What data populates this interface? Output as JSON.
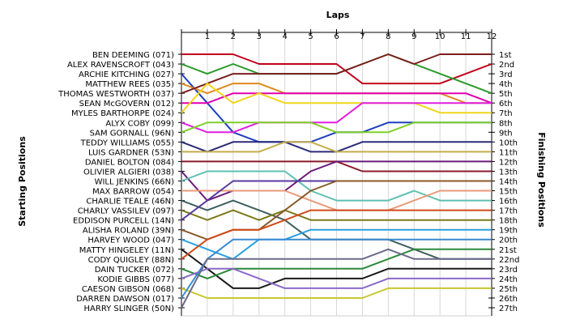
{
  "chart_data": {
    "type": "line",
    "title": "Laps",
    "ylabel_left": "Starting Positions",
    "ylabel_right": "Finishing Positions",
    "laps": [
      "1",
      "2",
      "3",
      "4",
      "5",
      "6",
      "7",
      "8",
      "9",
      "10",
      "11",
      "12"
    ],
    "finish_labels": [
      "1st",
      "2nd",
      "3rd",
      "4th",
      "5th",
      "6th",
      "7th",
      "8th",
      "9th",
      "10th",
      "11th",
      "12th",
      "13th",
      "14th",
      "15th",
      "16th",
      "17th",
      "18th",
      "19th",
      "20th",
      "21st",
      "22nd",
      "23rd",
      "24th",
      "25th",
      "26th",
      "27th"
    ],
    "series": [
      {
        "name": "BEN DEEMING (071)",
        "color": "#c0001a",
        "positions": [
          1,
          1,
          1,
          2,
          2,
          2,
          2,
          4,
          4,
          4,
          4,
          3,
          2
        ]
      },
      {
        "name": "ALEX RAVENSCROFT (043)",
        "color": "#2a9a2a",
        "positions": [
          2,
          3,
          2,
          3,
          3,
          3,
          3,
          2,
          1,
          2,
          3,
          4,
          5
        ]
      },
      {
        "name": "ARCHIE KITCHING (027)",
        "color": "#1f3fbf",
        "positions": [
          3,
          6,
          9,
          10,
          10,
          10,
          9,
          9,
          8,
          8,
          8,
          8,
          8
        ]
      },
      {
        "name": "MATTHEW REES (035)",
        "color": "#e08a1e",
        "positions": [
          4,
          5,
          4,
          4,
          5,
          5,
          5,
          5,
          5,
          5,
          5,
          6,
          6
        ]
      },
      {
        "name": "THOMAS WESTWORTH (037)",
        "color": "#7b1e1e",
        "positions": [
          5,
          4,
          3,
          3,
          3,
          3,
          3,
          2,
          1,
          2,
          1,
          1,
          1
        ]
      },
      {
        "name": "SEAN McGOVERN (012)",
        "color": "#e000b0",
        "positions": [
          6,
          6,
          5,
          5,
          5,
          5,
          5,
          5,
          5,
          5,
          5,
          5,
          6
        ]
      },
      {
        "name": "MYLES BARTHORPE (024)",
        "color": "#f1d51b",
        "positions": [
          7,
          4,
          6,
          5,
          6,
          6,
          6,
          6,
          6,
          6,
          7,
          7,
          7
        ]
      },
      {
        "name": "ALYX COBY (099)",
        "color": "#e01fe0",
        "positions": [
          8,
          9,
          9,
          8,
          8,
          8,
          8,
          6,
          6,
          6,
          6,
          6,
          6
        ]
      },
      {
        "name": "SAM GORNALL (96N)",
        "color": "#7fd02a",
        "positions": [
          9,
          8,
          8,
          8,
          8,
          8,
          9,
          9,
          9,
          8,
          8,
          8,
          8
        ]
      },
      {
        "name": "TEDDY WILLIAMS (055)",
        "color": "#2b2b7a",
        "positions": [
          10,
          11,
          10,
          10,
          10,
          11,
          11,
          10,
          10,
          10,
          10,
          10,
          10
        ]
      },
      {
        "name": "LUIS GARDNER (53N)",
        "color": "#c4ae4a",
        "positions": [
          11,
          11,
          11,
          11,
          10,
          10,
          11,
          11,
          11,
          11,
          11,
          11,
          11
        ]
      },
      {
        "name": "DANIEL BOLTON (084)",
        "color": "#8a1a2a",
        "positions": [
          12,
          12,
          12,
          12,
          12,
          12,
          12,
          13,
          13,
          13,
          13,
          13,
          13
        ]
      },
      {
        "name": "OLIVIER ALGIERI (038)",
        "color": "#6a1a7a",
        "positions": [
          13,
          16,
          15,
          15,
          15,
          13,
          12,
          12,
          12,
          12,
          12,
          12,
          12
        ]
      },
      {
        "name": "WILL JENKINS (66N)",
        "color": "#5fc0b0",
        "positions": [
          14,
          13,
          13,
          13,
          13,
          15,
          16,
          16,
          16,
          15,
          16,
          16,
          16
        ]
      },
      {
        "name": "MAX BARROW (054)",
        "color": "#e89a7a",
        "positions": [
          15,
          15,
          15,
          15,
          15,
          16,
          17,
          17,
          17,
          16,
          15,
          15,
          15
        ]
      },
      {
        "name": "CHARLIE TEALE (46N)",
        "color": "#3f5f5f",
        "positions": [
          16,
          17,
          16,
          17,
          18,
          20,
          20,
          20,
          20,
          21,
          22,
          22,
          22
        ]
      },
      {
        "name": "CHARLY VASSILEV (097)",
        "color": "#7a7a1a",
        "positions": [
          17,
          18,
          17,
          18,
          17,
          18,
          18,
          18,
          18,
          18,
          18,
          18,
          18
        ]
      },
      {
        "name": "EDDISON PURCELL (14N)",
        "color": "#5a3aa0",
        "positions": [
          18,
          16,
          14,
          14,
          14,
          14,
          14,
          14,
          14,
          14,
          14,
          14,
          14
        ]
      },
      {
        "name": "ALISHA ROLAND (39N)",
        "color": "#8a5a2a",
        "positions": [
          19,
          20,
          19,
          19,
          17,
          15,
          14,
          14,
          14,
          14,
          14,
          14,
          14
        ]
      },
      {
        "name": "HARVEY WOOD (047)",
        "color": "#2aa0e0",
        "positions": [
          20,
          21,
          22,
          20,
          20,
          19,
          19,
          19,
          19,
          19,
          19,
          19,
          19
        ]
      },
      {
        "name": "MATTY HINGELEY (11N)",
        "color": "#1a1a1a",
        "positions": [
          21,
          23,
          25,
          25,
          24,
          24,
          24,
          24,
          23,
          23,
          23,
          23,
          23
        ]
      },
      {
        "name": "CODY QUIGLEY (88N)",
        "color": "#d04a1a",
        "positions": [
          22,
          20,
          19,
          19,
          18,
          17,
          17,
          17,
          17,
          17,
          17,
          17,
          17
        ]
      },
      {
        "name": "DAIN TUCKER (072)",
        "color": "#2a8a3a",
        "positions": [
          23,
          24,
          23,
          23,
          23,
          23,
          23,
          23,
          22,
          21,
          21,
          21,
          21
        ]
      },
      {
        "name": "KODIE GIBBS (077)",
        "color": "#8a6ac8",
        "positions": [
          24,
          23,
          23,
          24,
          25,
          25,
          25,
          25,
          24,
          24,
          24,
          24,
          24
        ]
      },
      {
        "name": "CAESON GIBSON (068)",
        "color": "#c8c830",
        "positions": [
          25,
          26,
          26,
          26,
          26,
          26,
          26,
          26,
          25,
          25,
          25,
          25,
          25
        ]
      },
      {
        "name": "DARREN DAWSON (017)",
        "color": "#3a8ad0",
        "positions": [
          26,
          22,
          20,
          20,
          20,
          20,
          20,
          20,
          20,
          20,
          20,
          20,
          20
        ]
      },
      {
        "name": "HARRY SLINGER (50N)",
        "color": "#6a6a8a",
        "positions": [
          27,
          22,
          22,
          22,
          22,
          22,
          22,
          22,
          21,
          22,
          22,
          22,
          22
        ]
      }
    ]
  }
}
